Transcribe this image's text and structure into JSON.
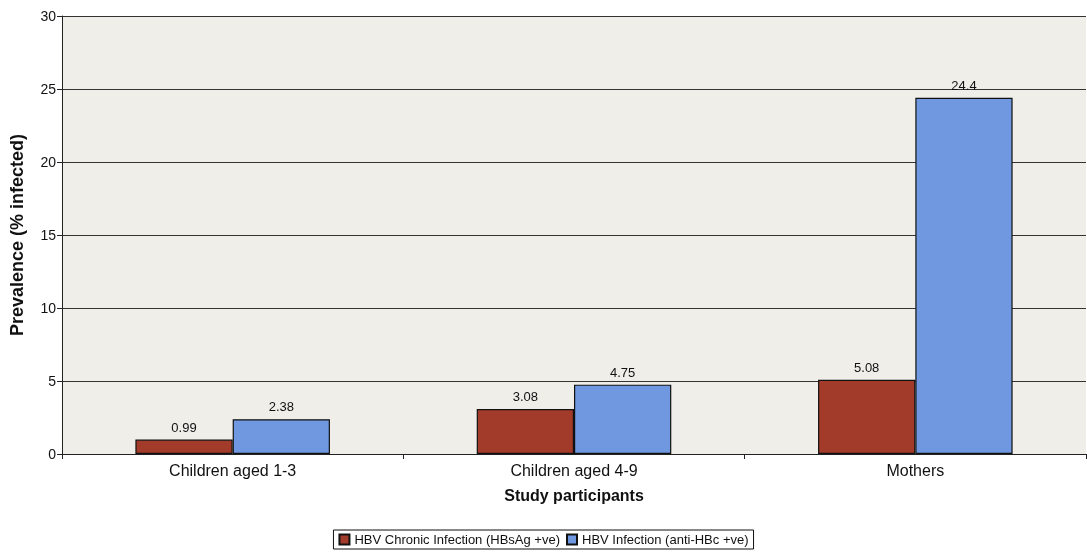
{
  "chart_data": {
    "type": "bar",
    "xlabel": "Study participants",
    "ylabel": "Prevalence (% infected)",
    "categories": [
      "Children aged 1-3",
      "Children aged 4-9",
      "Mothers"
    ],
    "series": [
      {
        "name": "HBV Chronic Infection (HBsAg +ve)",
        "color": "#a33b2b",
        "values": [
          0.99,
          3.08,
          5.08
        ]
      },
      {
        "name": "HBV Infection (anti-HBc +ve)",
        "color": "#6f98e0",
        "values": [
          2.38,
          4.75,
          24.4
        ]
      }
    ],
    "ylim": [
      0,
      30
    ],
    "yticks": [
      0,
      5,
      10,
      15,
      20,
      25,
      30
    ],
    "grid": "y",
    "legend": "bottom",
    "data_labels": true
  }
}
